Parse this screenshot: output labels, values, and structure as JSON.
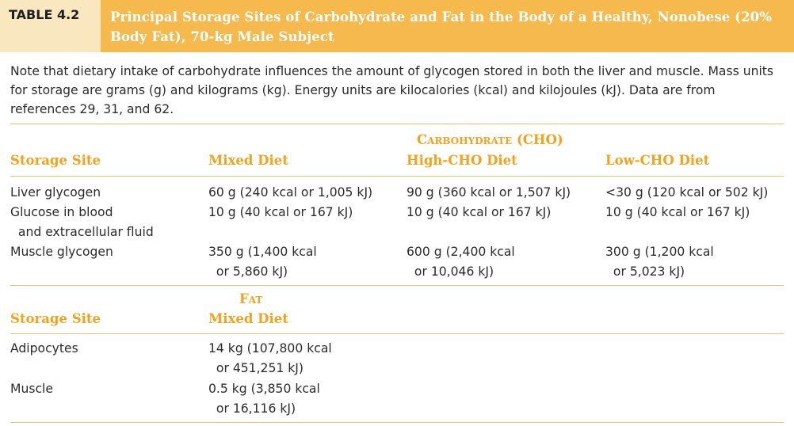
{
  "table": {
    "label": "TABLE 4.2",
    "title": "Principal Storage Sites of Carbohydrate and Fat in the Body of a Healthy, Nonobese (20% Body Fat), 70-kg Male Subject",
    "note": "Note that dietary intake of carbohydrate influences the amount of glycogen stored in both the liver and muscle. Mass units for storage are grams (g) and kilograms (kg). Energy units are kilocalories (kcal) and kilojoules (kJ). Data are from references 29, 31, and 62."
  },
  "cho": {
    "group_header": "Carbohydrate (CHO)",
    "columns": [
      "Storage Site",
      "Mixed Diet",
      "High-CHO Diet",
      "Low-CHO Diet"
    ],
    "rows": [
      {
        "site": [
          "Liver glycogen"
        ],
        "mixed": [
          "60 g (240 kcal or 1,005 kJ)"
        ],
        "high": [
          "90 g (360 kcal or 1,507 kJ)"
        ],
        "low": [
          "<30 g (120 kcal or 502 kJ)"
        ]
      },
      {
        "site": [
          "Glucose in blood",
          "  and extracellular fluid"
        ],
        "mixed": [
          "10 g (40 kcal or 167 kJ)"
        ],
        "high": [
          "10 g (40 kcal or 167 kJ)"
        ],
        "low": [
          "10 g (40 kcal or 167 kJ)"
        ]
      },
      {
        "site": [
          "Muscle glycogen"
        ],
        "mixed": [
          "350 g (1,400 kcal",
          "  or 5,860 kJ)"
        ],
        "high": [
          "600 g (2,400 kcal",
          "  or 10,046 kJ)"
        ],
        "low": [
          "300 g (1,200 kcal",
          "  or 5,023 kJ)"
        ]
      }
    ]
  },
  "fat": {
    "group_header": "Fat",
    "columns": [
      "Storage Site",
      "Mixed Diet"
    ],
    "rows": [
      {
        "site": [
          "Adipocytes"
        ],
        "mixed": [
          "14 kg (107,800 kcal",
          "  or 451,251 kJ)"
        ]
      },
      {
        "site": [
          "Muscle"
        ],
        "mixed": [
          "0.5 kg (3,850 kcal",
          "  or 16,116 kJ)"
        ]
      }
    ]
  },
  "colors": {
    "label_band": "#f9e7bf",
    "title_band": "#f6b94e",
    "heading_text": "#f2a21e",
    "rule": "#f3c37a"
  }
}
